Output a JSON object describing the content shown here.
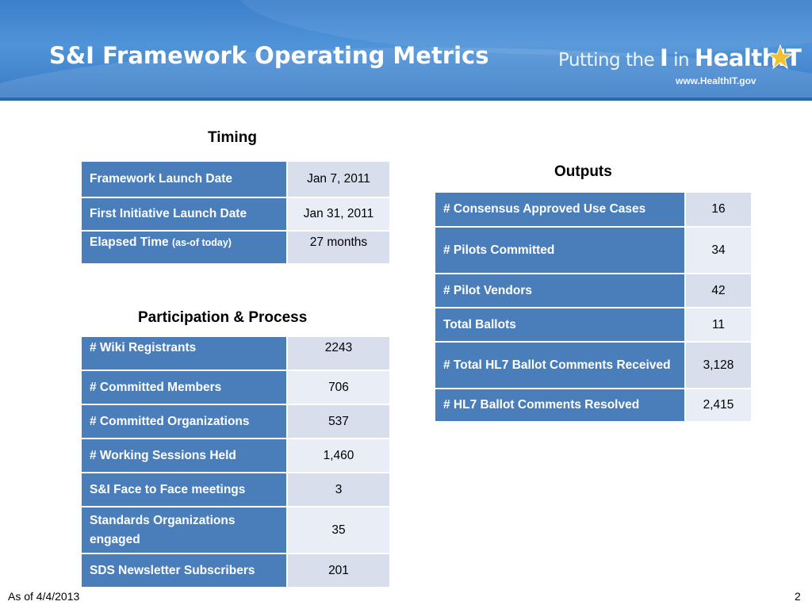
{
  "header": {
    "title": "S&I Framework Operating Metrics",
    "logo": {
      "text_prefix": "Putting the ",
      "text_i": "I",
      "text_in": " in ",
      "text_health": "Health",
      "text_it": "IT",
      "url": "www.HealthIT.gov",
      "star_icon": "star-icon",
      "star_color": "#f2c12e"
    }
  },
  "colors": {
    "header_blue": "#3c7fcb",
    "label_cell": "#4a7ebb",
    "value_cell": "#d8deec",
    "value_cell_alt": "#e9edf6"
  },
  "timing": {
    "title": "Timing",
    "rows": [
      {
        "label": "Framework Launch Date",
        "label_note": "",
        "value": "Jan 7, 2011"
      },
      {
        "label": "First Initiative Launch Date",
        "label_note": "",
        "value": "Jan 31, 2011"
      },
      {
        "label": "Elapsed Time ",
        "label_note": "(as-of today)",
        "value": "27 months"
      }
    ]
  },
  "participation": {
    "title": "Participation & Process",
    "rows": [
      {
        "label": "# Wiki Registrants",
        "value": "2243"
      },
      {
        "label": "# Committed Members",
        "value": "706"
      },
      {
        "label": "# Committed Organizations",
        "value": "537"
      },
      {
        "label": "# Working Sessions Held",
        "value": "1,460"
      },
      {
        "label": "S&I Face to Face meetings",
        "value": "3"
      },
      {
        "label": "Standards Organizations engaged",
        "value": "35"
      },
      {
        "label": "SDS Newsletter Subscribers",
        "value": "201"
      }
    ]
  },
  "outputs": {
    "title": "Outputs",
    "rows": [
      {
        "label": "# Consensus Approved Use Cases",
        "value": "16"
      },
      {
        "label": "# Pilots Committed",
        "value": "34"
      },
      {
        "label": "# Pilot Vendors",
        "value": "42"
      },
      {
        "label": "Total Ballots",
        "value": "11"
      },
      {
        "label": "# Total HL7 Ballot Comments Received",
        "value": "3,128"
      },
      {
        "label": "# HL7 Ballot Comments Resolved",
        "value": "2,415"
      }
    ]
  },
  "footer": {
    "as_of": "As of 4/4/2013",
    "page_number": "2"
  }
}
